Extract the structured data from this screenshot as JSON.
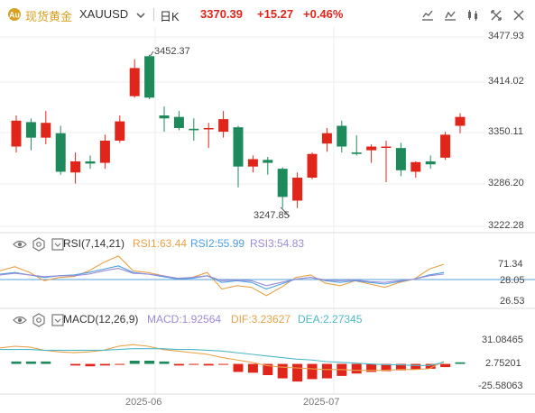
{
  "header": {
    "symbol_name": "现货黄金",
    "symbol_code": "XAUUSD",
    "period": "日K",
    "price": "3370.39",
    "change": "+15.27",
    "change_pct": "+0.46%"
  },
  "colors": {
    "up": "#e0261b",
    "down": "#1e8a5c",
    "header_gold": "#d9a021",
    "rsi1": "#e8a24a",
    "rsi2": "#4f9fe0",
    "rsi3": "#9b8bd6",
    "macd_label": "#9b8bd6",
    "dif": "#e8a24a",
    "dea": "#4fb8c9",
    "grid": "#ececec"
  },
  "rsi_panel": {
    "label": "RSI(7,14,21)",
    "rsi1": "RSI1:63.44",
    "rsi2": "RSI2:55.99",
    "rsi3": "RSI3:54.83"
  },
  "macd_panel": {
    "label": "MACD(12,26,9)",
    "macd": "MACD:1.92564",
    "dif": "DIF:3.23627",
    "dea": "DEA:2.27345"
  },
  "chart_data": [
    {
      "type": "candlestick",
      "title": "",
      "y_ticks": [
        "3477.93",
        "3414.02",
        "3350.11",
        "3286.20",
        "3222.28"
      ],
      "ylim": [
        3222.28,
        3477.93
      ],
      "x_labels": [
        "2025-06",
        "2025-07"
      ],
      "annotations": [
        "3452.37",
        "3247.85"
      ],
      "candles": [
        {
          "o": 3330,
          "h": 3372,
          "l": 3322,
          "c": 3365
        },
        {
          "o": 3363,
          "h": 3368,
          "l": 3325,
          "c": 3342
        },
        {
          "o": 3342,
          "h": 3378,
          "l": 3333,
          "c": 3362
        },
        {
          "o": 3348,
          "h": 3358,
          "l": 3292,
          "c": 3296
        },
        {
          "o": 3295,
          "h": 3322,
          "l": 3280,
          "c": 3310
        },
        {
          "o": 3310,
          "h": 3318,
          "l": 3300,
          "c": 3307
        },
        {
          "o": 3308,
          "h": 3346,
          "l": 3300,
          "c": 3338
        },
        {
          "o": 3338,
          "h": 3372,
          "l": 3335,
          "c": 3364
        },
        {
          "o": 3398,
          "h": 3448,
          "l": 3396,
          "c": 3436
        },
        {
          "o": 3452,
          "h": 3454,
          "l": 3394,
          "c": 3396
        },
        {
          "o": 3372,
          "h": 3384,
          "l": 3350,
          "c": 3368
        },
        {
          "o": 3370,
          "h": 3378,
          "l": 3352,
          "c": 3355
        },
        {
          "o": 3354,
          "h": 3368,
          "l": 3338,
          "c": 3352
        },
        {
          "o": 3355,
          "h": 3362,
          "l": 3328,
          "c": 3355
        },
        {
          "o": 3350,
          "h": 3378,
          "l": 3342,
          "c": 3367
        },
        {
          "o": 3356,
          "h": 3358,
          "l": 3275,
          "c": 3303
        },
        {
          "o": 3303,
          "h": 3318,
          "l": 3295,
          "c": 3313
        },
        {
          "o": 3312,
          "h": 3316,
          "l": 3292,
          "c": 3308
        },
        {
          "o": 3300,
          "h": 3302,
          "l": 3247,
          "c": 3262
        },
        {
          "o": 3257,
          "h": 3295,
          "l": 3247,
          "c": 3288
        },
        {
          "o": 3288,
          "h": 3322,
          "l": 3286,
          "c": 3320
        },
        {
          "o": 3334,
          "h": 3355,
          "l": 3323,
          "c": 3348
        },
        {
          "o": 3358,
          "h": 3365,
          "l": 3322,
          "c": 3330
        },
        {
          "o": 3322,
          "h": 3345,
          "l": 3318,
          "c": 3320
        },
        {
          "o": 3325,
          "h": 3333,
          "l": 3308,
          "c": 3330
        },
        {
          "o": 3330,
          "h": 3338,
          "l": 3282,
          "c": 3330
        },
        {
          "o": 3328,
          "h": 3335,
          "l": 3290,
          "c": 3298
        },
        {
          "o": 3296,
          "h": 3310,
          "l": 3288,
          "c": 3309
        },
        {
          "o": 3310,
          "h": 3318,
          "l": 3300,
          "c": 3306
        },
        {
          "o": 3315,
          "h": 3350,
          "l": 3312,
          "c": 3346
        },
        {
          "o": 3358,
          "h": 3375,
          "l": 3348,
          "c": 3370
        }
      ]
    },
    {
      "type": "line",
      "title": "",
      "y_ticks": [
        "71.34",
        "28.05",
        "26.53"
      ],
      "ylim": [
        20,
        80
      ],
      "series": [
        {
          "name": "RSI1",
          "values": [
            60,
            65,
            58,
            48,
            52,
            53,
            60,
            70,
            78,
            60,
            58,
            54,
            50,
            52,
            58,
            38,
            42,
            40,
            30,
            40,
            52,
            55,
            45,
            42,
            48,
            44,
            40,
            46,
            50,
            62,
            68
          ]
        },
        {
          "name": "RSI2",
          "values": [
            56,
            58,
            55,
            52,
            54,
            55,
            58,
            62,
            66,
            58,
            56,
            53,
            50,
            51,
            54,
            46,
            48,
            46,
            38,
            44,
            50,
            52,
            48,
            46,
            48,
            46,
            44,
            47,
            50,
            55,
            58
          ]
        },
        {
          "name": "RSI3",
          "values": [
            55,
            57,
            55,
            53,
            54,
            54,
            56,
            60,
            63,
            57,
            56,
            54,
            51,
            52,
            54,
            48,
            49,
            48,
            42,
            46,
            50,
            52,
            49,
            48,
            49,
            47,
            46,
            48,
            50,
            54,
            56
          ]
        }
      ]
    },
    {
      "type": "bar",
      "title": "",
      "y_ticks": [
        "31.08465",
        "2.75201",
        "-25.58063"
      ],
      "ylim": [
        -32,
        40
      ],
      "histogram": [
        3,
        3,
        3,
        0,
        -2,
        -3,
        -2,
        -1,
        4,
        4,
        3,
        -2,
        -1,
        -2,
        -1,
        -10,
        -11,
        -14,
        -18,
        -22,
        -19,
        -18,
        -15,
        -12,
        -10,
        -9,
        -8,
        -7,
        -6,
        -4,
        2
      ],
      "series": [
        {
          "name": "DIF",
          "values": [
            20,
            22,
            21,
            17,
            15,
            14,
            15,
            17,
            22,
            24,
            22,
            18,
            16,
            14,
            12,
            8,
            5,
            2,
            -2,
            -4,
            -5,
            -6,
            -7,
            -7,
            -8,
            -8,
            -8,
            -7,
            -7,
            -6,
            3
          ]
        },
        {
          "name": "DEA",
          "values": [
            18,
            18,
            18,
            17,
            17,
            17,
            17,
            17,
            18,
            19,
            19,
            19,
            18,
            18,
            17,
            16,
            14,
            12,
            10,
            8,
            6,
            5,
            3,
            2,
            1,
            0,
            -1,
            -1,
            -2,
            -2,
            2
          ]
        }
      ]
    }
  ]
}
